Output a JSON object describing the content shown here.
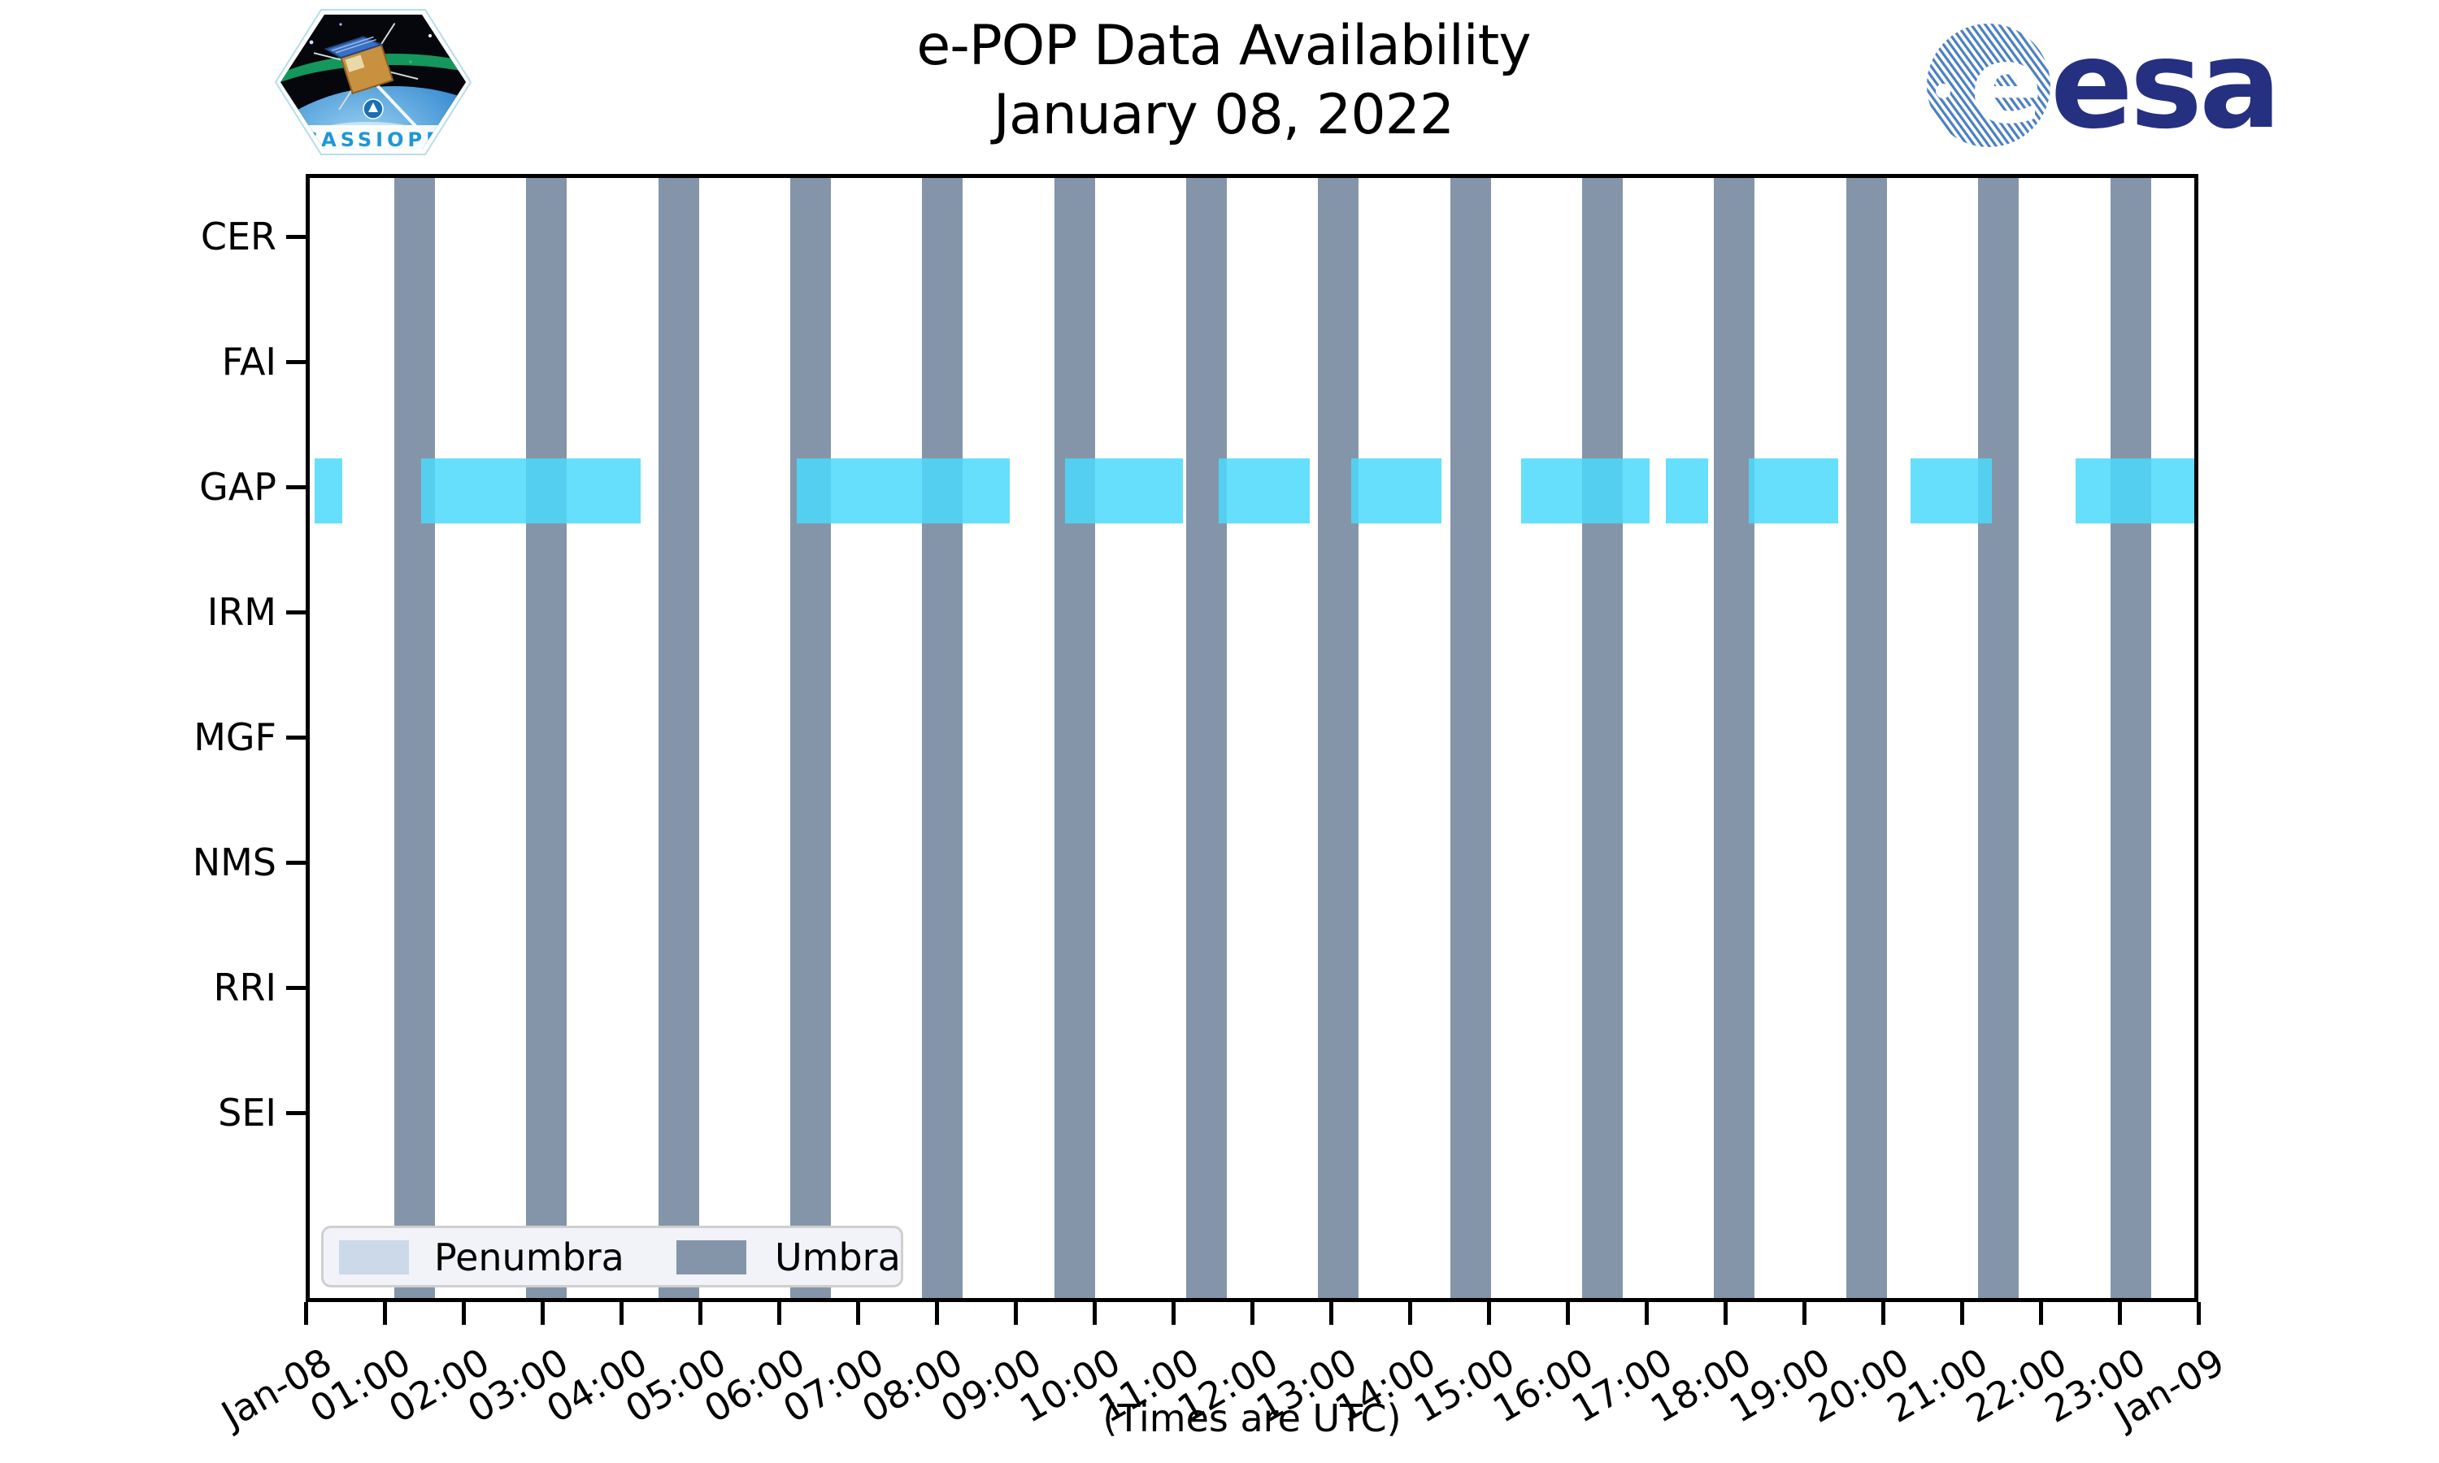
{
  "header": {
    "title": "e-POP Data Availability",
    "subtitle": "January 08, 2022",
    "cassiope_patch_text": "CASSIOPE",
    "esa_wordmark": "esa"
  },
  "chart_data": {
    "type": "bar",
    "subtype": "horizontal-availability-timeline",
    "title": "e-POP Data Availability",
    "subtitle": "January 08, 2022",
    "xlabel": "(Times are UTC)",
    "x_tick_labels": [
      "Jan-08",
      "01:00",
      "02:00",
      "03:00",
      "04:00",
      "05:00",
      "06:00",
      "07:00",
      "08:00",
      "09:00",
      "10:00",
      "11:00",
      "12:00",
      "13:00",
      "14:00",
      "15:00",
      "16:00",
      "17:00",
      "18:00",
      "19:00",
      "20:00",
      "21:00",
      "22:00",
      "23:00",
      "Jan-09"
    ],
    "x_range_hours": [
      0,
      24
    ],
    "instruments": [
      "CER",
      "FAI",
      "GAP",
      "IRM",
      "MGF",
      "NMS",
      "RRI",
      "SEI"
    ],
    "availability_hours": {
      "CER": [],
      "FAI": [],
      "GAP": [
        [
          0.06,
          0.41
        ],
        [
          1.41,
          4.2
        ],
        [
          6.18,
          8.88
        ],
        [
          9.58,
          11.07
        ],
        [
          11.53,
          12.68
        ],
        [
          13.21,
          14.35
        ],
        [
          15.36,
          16.99
        ],
        [
          17.2,
          17.73
        ],
        [
          18.25,
          19.38
        ],
        [
          20.3,
          21.33
        ],
        [
          22.39,
          23.94
        ]
      ],
      "IRM": [],
      "MGF": [],
      "NMS": [],
      "RRI": [],
      "SEI": []
    },
    "umbra_intervals_hours": [
      [
        1.07,
        1.59
      ],
      [
        2.74,
        3.26
      ],
      [
        4.42,
        4.94
      ],
      [
        6.09,
        6.61
      ],
      [
        7.76,
        8.28
      ],
      [
        9.44,
        9.96
      ],
      [
        11.11,
        11.63
      ],
      [
        12.78,
        13.3
      ],
      [
        14.46,
        14.98
      ],
      [
        16.13,
        16.65
      ],
      [
        17.8,
        18.32
      ],
      [
        19.48,
        20.0
      ],
      [
        21.15,
        21.67
      ],
      [
        22.83,
        23.35
      ]
    ],
    "legend": [
      {
        "label": "Penumbra",
        "color": "#ccd9e9"
      },
      {
        "label": "Umbra",
        "color": "#8495a9"
      }
    ],
    "legend_position": "lower-left",
    "grid": false,
    "colors": {
      "available_fill": "#4bd9fc",
      "available_alpha": 0.85,
      "umbra": "#8495a9",
      "penumbra": "#ccd9e9",
      "axis_spine": "#000000",
      "legend_background": "#f1f3f8"
    }
  }
}
